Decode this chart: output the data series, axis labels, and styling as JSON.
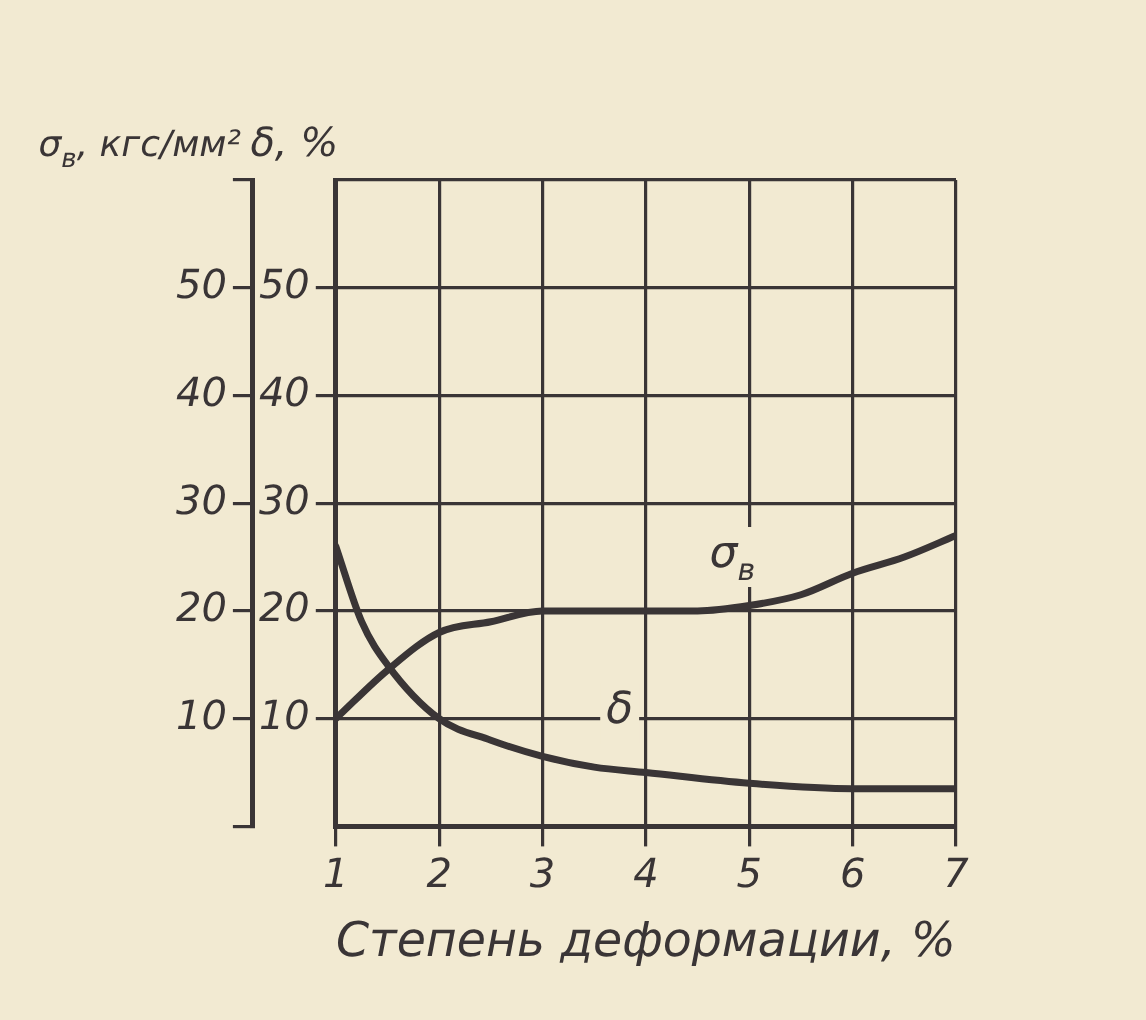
{
  "chart_data": {
    "type": "line",
    "xlabel": "Степень деформации, %",
    "ylabel": "σ$_{в}$, кгс/мм²",
    "y2label": "δ, %",
    "xlim": [
      1,
      7
    ],
    "xticks": [
      1,
      2,
      3,
      4,
      5,
      6,
      7
    ],
    "ylim": [
      0,
      60
    ],
    "yticks": [
      {
        "value": 0,
        "label": null
      },
      10,
      20,
      30,
      40,
      50,
      {
        "value": 60,
        "label": null
      }
    ],
    "y2lim": [
      0,
      60
    ],
    "y2ticks": [
      10,
      20,
      30,
      40,
      50
    ],
    "grid": true,
    "legend": false,
    "marker": "none",
    "line_style": "solid",
    "series": [
      {
        "name": "σ$_{в}$",
        "color": "#3a3536",
        "x": [
          1,
          1.5,
          2,
          2.5,
          3,
          3.5,
          4,
          4.5,
          5,
          5.5,
          6,
          6.5,
          7
        ],
        "values": [
          10,
          14.5,
          18,
          19,
          20,
          20,
          20,
          20,
          20.5,
          21.5,
          23.5,
          25,
          27
        ]
      },
      {
        "name": "δ",
        "color": "#3a3536",
        "axis": "y2",
        "x": [
          1,
          1.25,
          1.5,
          2,
          2.5,
          3,
          3.5,
          4,
          5,
          6,
          7
        ],
        "values": [
          26,
          19,
          15,
          10,
          8,
          6.5,
          5.5,
          5,
          4,
          3.5,
          3.5
        ]
      }
    ]
  }
}
